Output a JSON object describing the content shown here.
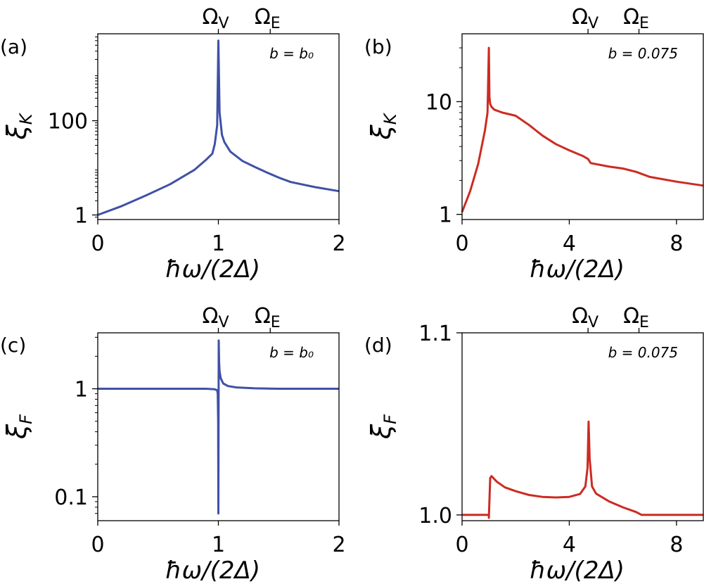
{
  "chart_data": [
    {
      "panel_label": "(a)",
      "type": "line",
      "yscale": "log",
      "xlabel": "ħω/(2Δ)",
      "ylabel_sym": "ξ",
      "ylabel_sub": "K",
      "xlim": [
        0,
        2
      ],
      "ylim": [
        0.8,
        7000
      ],
      "xticks": [
        0,
        1,
        2
      ],
      "xtick_labels": [
        "0",
        "1",
        "2"
      ],
      "yticks": [
        1,
        100
      ],
      "ytick_labels": [
        "1",
        "100"
      ],
      "annotation": "b = b₀",
      "top_markers": [
        {
          "label": "Ω",
          "sub": "V",
          "x": 1.0
        },
        {
          "label": "Ω",
          "sub": "E",
          "x": 1.43
        }
      ],
      "series": [
        {
          "color": "#3f51a6",
          "x": [
            0,
            0.2,
            0.4,
            0.6,
            0.8,
            0.9,
            0.95,
            0.97,
            0.99,
            1.0,
            1.01,
            1.03,
            1.05,
            1.1,
            1.2,
            1.3,
            1.4,
            1.5,
            1.6,
            1.8,
            2.0
          ],
          "y": [
            1,
            1.55,
            2.6,
            4.5,
            9,
            15,
            20,
            32,
            80,
            5000,
            150,
            50,
            35,
            22,
            14,
            10.5,
            8,
            6.2,
            5,
            3.9,
            3.2
          ]
        }
      ]
    },
    {
      "panel_label": "(b)",
      "type": "line",
      "yscale": "log",
      "xlabel": "ħω/(2Δ)",
      "ylabel_sym": "ξ",
      "ylabel_sub": "K",
      "xlim": [
        0,
        9
      ],
      "ylim": [
        0.9,
        40
      ],
      "xticks": [
        0,
        4,
        8
      ],
      "xtick_labels": [
        "0",
        "4",
        "8"
      ],
      "yticks": [
        1,
        10
      ],
      "ytick_labels": [
        "1",
        "10"
      ],
      "annotation": "b = 0.075",
      "top_markers": [
        {
          "label": "Ω",
          "sub": "V",
          "x": 4.7
        },
        {
          "label": "Ω",
          "sub": "E",
          "x": 6.6
        }
      ],
      "series": [
        {
          "color": "#cc2b22",
          "x": [
            0,
            0.3,
            0.6,
            0.85,
            0.95,
            1.0,
            1.02,
            1.05,
            1.1,
            1.2,
            1.5,
            2.0,
            2.5,
            3.0,
            3.5,
            4.0,
            4.5,
            4.7,
            4.8,
            5.5,
            6.0,
            6.5,
            7.0,
            8.0,
            9.0
          ],
          "y": [
            1.05,
            1.6,
            2.8,
            5.5,
            8,
            30,
            11,
            9.5,
            9,
            8.5,
            8,
            7.5,
            6.2,
            5,
            4.2,
            3.7,
            3.3,
            3.1,
            2.85,
            2.65,
            2.55,
            2.38,
            2.15,
            1.95,
            1.8
          ]
        }
      ]
    },
    {
      "panel_label": "(c)",
      "type": "line",
      "yscale": "log",
      "xlabel": "ħω/(2Δ)",
      "ylabel_sym": "ξ",
      "ylabel_sub": "F",
      "xlim": [
        0,
        2
      ],
      "ylim": [
        0.06,
        3.3
      ],
      "xticks": [
        0,
        1,
        2
      ],
      "xtick_labels": [
        "0",
        "1",
        "2"
      ],
      "yticks": [
        0.1,
        1
      ],
      "ytick_labels": [
        "0.1",
        "1"
      ],
      "annotation": "b = b₀",
      "top_markers": [
        {
          "label": "Ω",
          "sub": "V",
          "x": 1.0
        },
        {
          "label": "Ω",
          "sub": "E",
          "x": 1.43
        }
      ],
      "series": [
        {
          "color": "#3f51a6",
          "x": [
            0,
            0.5,
            0.9,
            0.97,
            0.99,
            0.995,
            0.998,
            1.0,
            1.003,
            1.006,
            1.01,
            1.02,
            1.04,
            1.08,
            1.15,
            1.3,
            1.5,
            2.0
          ],
          "y": [
            1,
            1,
            1,
            0.99,
            0.97,
            0.9,
            0.5,
            0.07,
            2.8,
            1.8,
            1.45,
            1.25,
            1.12,
            1.06,
            1.03,
            1.01,
            1.0,
            1.0
          ]
        }
      ]
    },
    {
      "panel_label": "(d)",
      "type": "line",
      "yscale": "log",
      "xlabel": "ħω/(2Δ)",
      "ylabel_sym": "ξ",
      "ylabel_sub": "F",
      "xlim": [
        0,
        9
      ],
      "ylim": [
        0.997,
        1.1
      ],
      "xticks": [
        0,
        4,
        8
      ],
      "xtick_labels": [
        "0",
        "4",
        "8"
      ],
      "yticks": [
        1.0,
        1.1
      ],
      "ytick_labels": [
        "1.0",
        "1.1"
      ],
      "annotation": "b = 0.075",
      "top_markers": [
        {
          "label": "Ω",
          "sub": "V",
          "x": 4.7
        },
        {
          "label": "Ω",
          "sub": "E",
          "x": 6.6
        }
      ],
      "series": [
        {
          "color": "#cc2b22",
          "x": [
            0,
            0.9,
            1.0,
            1.001,
            1.05,
            1.1,
            1.3,
            1.6,
            2.0,
            2.5,
            3.0,
            3.5,
            4.0,
            4.4,
            4.6,
            4.68,
            4.72,
            4.76,
            4.85,
            5.0,
            5.5,
            6.0,
            6.5,
            6.7,
            7.0,
            8.0,
            9.0
          ],
          "y": [
            1.0,
            1.0,
            1.0,
            0.9985,
            1.0195,
            1.0205,
            1.0175,
            1.0145,
            1.0125,
            1.0105,
            1.0095,
            1.0092,
            1.0095,
            1.011,
            1.015,
            1.025,
            1.05,
            1.03,
            1.015,
            1.0112,
            1.007,
            1.004,
            1.0015,
            1.0,
            1.0,
            1.0,
            1.0
          ]
        }
      ]
    }
  ]
}
